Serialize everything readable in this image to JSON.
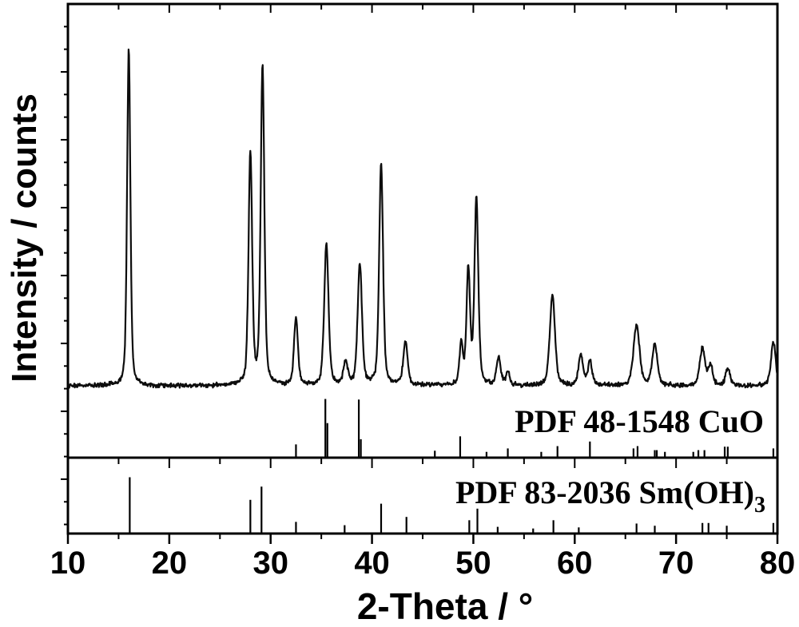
{
  "figure": {
    "background": "#ffffff",
    "axis_color": "#000000",
    "trace_color": "#0d0d0d"
  },
  "chart_data": {
    "type": "line",
    "title": "",
    "xlabel": "2-Theta / °",
    "ylabel": "Intensity / counts",
    "xlim": [
      10,
      80
    ],
    "x_major_ticks": [
      10,
      20,
      30,
      40,
      50,
      60,
      70,
      80
    ],
    "x_minor_tick_step": 5,
    "y_axis": {
      "tick_labels_shown": false,
      "units": "arbitrary counts"
    },
    "grid": false,
    "legend_position": "none",
    "sample": {
      "name": "measured XRD pattern",
      "noise_amplitude_rel": 0.8,
      "peaks": [
        {
          "two_theta": 16.0,
          "intensity": 100,
          "fwhm": 0.38
        },
        {
          "two_theta": 28.0,
          "intensity": 69,
          "fwhm": 0.42
        },
        {
          "two_theta": 29.2,
          "intensity": 95,
          "fwhm": 0.42
        },
        {
          "two_theta": 32.5,
          "intensity": 20,
          "fwhm": 0.45
        },
        {
          "two_theta": 35.5,
          "intensity": 42,
          "fwhm": 0.5
        },
        {
          "two_theta": 37.4,
          "intensity": 7,
          "fwhm": 0.5
        },
        {
          "two_theta": 38.8,
          "intensity": 36,
          "fwhm": 0.5
        },
        {
          "two_theta": 40.9,
          "intensity": 66,
          "fwhm": 0.45
        },
        {
          "two_theta": 43.3,
          "intensity": 13,
          "fwhm": 0.5
        },
        {
          "two_theta": 48.8,
          "intensity": 12,
          "fwhm": 0.4
        },
        {
          "two_theta": 49.5,
          "intensity": 34,
          "fwhm": 0.42
        },
        {
          "two_theta": 50.3,
          "intensity": 55,
          "fwhm": 0.45
        },
        {
          "two_theta": 52.5,
          "intensity": 8,
          "fwhm": 0.5
        },
        {
          "two_theta": 53.4,
          "intensity": 4,
          "fwhm": 0.4
        },
        {
          "two_theta": 57.8,
          "intensity": 27,
          "fwhm": 0.6
        },
        {
          "two_theta": 60.6,
          "intensity": 9,
          "fwhm": 0.5
        },
        {
          "two_theta": 61.5,
          "intensity": 7,
          "fwhm": 0.5
        },
        {
          "two_theta": 66.1,
          "intensity": 18,
          "fwhm": 0.7
        },
        {
          "two_theta": 67.9,
          "intensity": 12,
          "fwhm": 0.6
        },
        {
          "two_theta": 72.6,
          "intensity": 11,
          "fwhm": 0.6
        },
        {
          "two_theta": 73.4,
          "intensity": 6,
          "fwhm": 0.5
        },
        {
          "two_theta": 75.1,
          "intensity": 5,
          "fwhm": 0.5
        },
        {
          "two_theta": 79.6,
          "intensity": 13,
          "fwhm": 0.55
        }
      ]
    },
    "references": [
      {
        "id": "cuo",
        "label": "PDF 48-1548 CuO",
        "sticks": [
          [
            32.5,
            21
          ],
          [
            35.4,
            100
          ],
          [
            35.6,
            58
          ],
          [
            38.7,
            99
          ],
          [
            38.9,
            30
          ],
          [
            46.2,
            10
          ],
          [
            48.7,
            35
          ],
          [
            51.3,
            8
          ],
          [
            53.4,
            14
          ],
          [
            56.7,
            8
          ],
          [
            58.3,
            18
          ],
          [
            61.5,
            26
          ],
          [
            65.8,
            14
          ],
          [
            66.2,
            18
          ],
          [
            67.9,
            11
          ],
          [
            68.1,
            11
          ],
          [
            68.9,
            8
          ],
          [
            71.7,
            8
          ],
          [
            72.2,
            11
          ],
          [
            72.8,
            11
          ],
          [
            74.8,
            17
          ],
          [
            75.1,
            17
          ],
          [
            79.6,
            14
          ]
        ]
      },
      {
        "id": "smoh3",
        "label_main": "PDF 83-2036 Sm(OH)",
        "label_sub": "3",
        "sticks": [
          [
            16.1,
            100
          ],
          [
            28.0,
            59
          ],
          [
            29.1,
            83
          ],
          [
            32.5,
            19
          ],
          [
            37.3,
            13
          ],
          [
            40.9,
            52
          ],
          [
            43.4,
            28
          ],
          [
            49.6,
            22
          ],
          [
            50.4,
            43
          ],
          [
            52.4,
            10
          ],
          [
            55.9,
            7
          ],
          [
            57.9,
            22
          ],
          [
            60.4,
            9
          ],
          [
            66.1,
            16
          ],
          [
            67.9,
            12
          ],
          [
            72.6,
            17
          ],
          [
            73.2,
            17
          ],
          [
            75.0,
            12
          ],
          [
            79.6,
            17
          ]
        ]
      }
    ]
  }
}
